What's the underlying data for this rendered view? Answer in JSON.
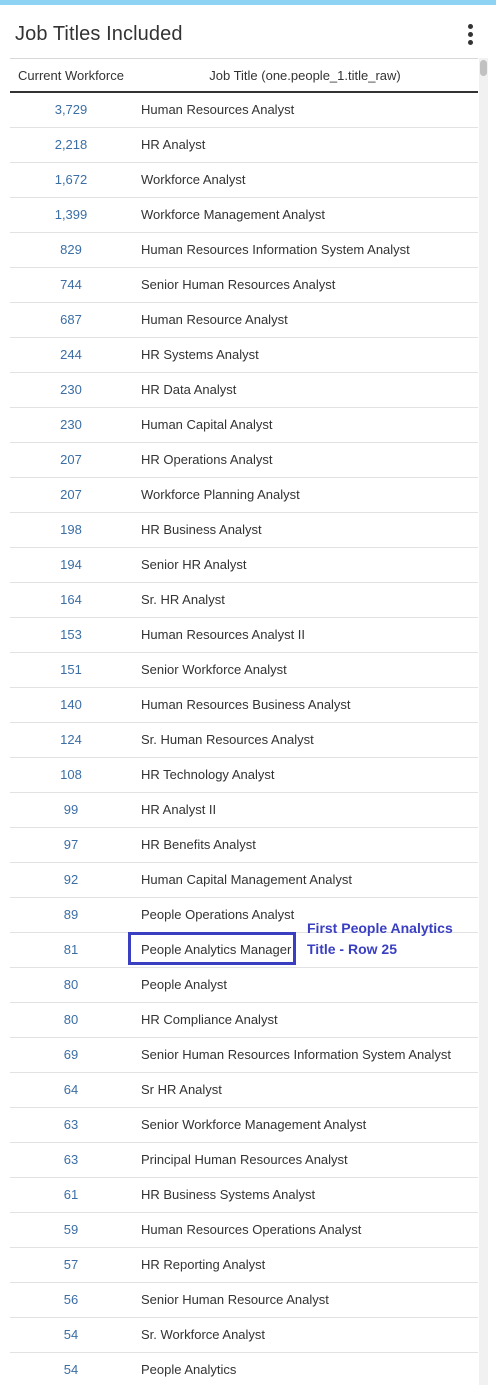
{
  "panel": {
    "title": "Job Titles Included",
    "accent_color": "#8fd3f4",
    "menu_icon": "kebab-menu-icon"
  },
  "table": {
    "headers": {
      "count": "Current Workforce",
      "title": "Job Title (one.people_1.title_raw)"
    },
    "rows": [
      {
        "count": "3,729",
        "title": "Human Resources Analyst"
      },
      {
        "count": "2,218",
        "title": "HR Analyst"
      },
      {
        "count": "1,672",
        "title": "Workforce Analyst"
      },
      {
        "count": "1,399",
        "title": "Workforce Management Analyst"
      },
      {
        "count": "829",
        "title": "Human Resources Information System Analyst"
      },
      {
        "count": "744",
        "title": "Senior Human Resources Analyst"
      },
      {
        "count": "687",
        "title": "Human Resource Analyst"
      },
      {
        "count": "244",
        "title": "HR Systems Analyst"
      },
      {
        "count": "230",
        "title": "HR Data Analyst"
      },
      {
        "count": "230",
        "title": "Human Capital Analyst"
      },
      {
        "count": "207",
        "title": "HR Operations Analyst"
      },
      {
        "count": "207",
        "title": "Workforce Planning Analyst"
      },
      {
        "count": "198",
        "title": "HR Business Analyst"
      },
      {
        "count": "194",
        "title": "Senior HR Analyst"
      },
      {
        "count": "164",
        "title": "Sr. HR Analyst"
      },
      {
        "count": "153",
        "title": "Human Resources Analyst II"
      },
      {
        "count": "151",
        "title": "Senior Workforce Analyst"
      },
      {
        "count": "140",
        "title": "Human Resources Business Analyst"
      },
      {
        "count": "124",
        "title": "Sr. Human Resources Analyst"
      },
      {
        "count": "108",
        "title": "HR Technology Analyst"
      },
      {
        "count": "99",
        "title": "HR Analyst II"
      },
      {
        "count": "97",
        "title": "HR Benefits Analyst"
      },
      {
        "count": "92",
        "title": "Human Capital Management Analyst"
      },
      {
        "count": "89",
        "title": "People Operations Analyst"
      },
      {
        "count": "81",
        "title": "People Analytics Manager"
      },
      {
        "count": "80",
        "title": "People Analyst"
      },
      {
        "count": "80",
        "title": "HR Compliance Analyst"
      },
      {
        "count": "69",
        "title": "Senior Human Resources Information System Analyst"
      },
      {
        "count": "64",
        "title": "Sr HR Analyst"
      },
      {
        "count": "63",
        "title": "Senior Workforce Management Analyst"
      },
      {
        "count": "63",
        "title": "Principal Human Resources Analyst"
      },
      {
        "count": "61",
        "title": "HR Business Systems Analyst"
      },
      {
        "count": "59",
        "title": "Human Resources Operations Analyst"
      },
      {
        "count": "57",
        "title": "HR Reporting Analyst"
      },
      {
        "count": "56",
        "title": "Senior Human Resource Analyst"
      },
      {
        "count": "54",
        "title": "Sr. Workforce Analyst"
      },
      {
        "count": "54",
        "title": "People Analytics"
      }
    ]
  },
  "annotation": {
    "line1": "First People Analytics",
    "line2": "Title - Row 25",
    "color": "#3a3fc1"
  },
  "colors": {
    "count_link": "#3b6ea5",
    "text": "#333333"
  }
}
